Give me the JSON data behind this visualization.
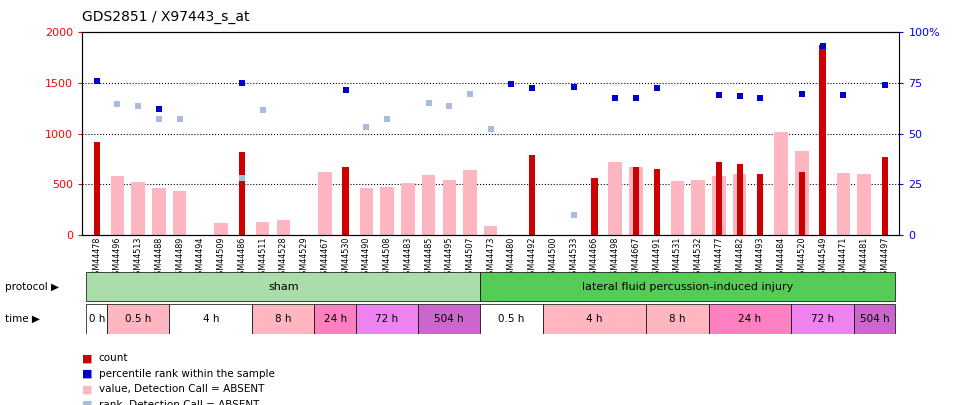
{
  "title": "GDS2851 / X97443_s_at",
  "samples": [
    "GSM44478",
    "GSM44496",
    "GSM44513",
    "GSM44488",
    "GSM44489",
    "GSM44494",
    "GSM44509",
    "GSM44486",
    "GSM44511",
    "GSM44528",
    "GSM44529",
    "GSM44467",
    "GSM44530",
    "GSM44490",
    "GSM44508",
    "GSM44483",
    "GSM44485",
    "GSM44495",
    "GSM44507",
    "GSM44473",
    "GSM44480",
    "GSM44492",
    "GSM44500",
    "GSM44533",
    "GSM44466",
    "GSM44498",
    "GSM44667",
    "GSM44491",
    "GSM44531",
    "GSM44532",
    "GSM44477",
    "GSM44482",
    "GSM44493",
    "GSM44484",
    "GSM44520",
    "GSM44549",
    "GSM44471",
    "GSM44481",
    "GSM44497"
  ],
  "count_data": [
    920,
    0,
    0,
    0,
    0,
    0,
    0,
    820,
    0,
    0,
    0,
    0,
    670,
    0,
    0,
    0,
    0,
    0,
    0,
    0,
    0,
    790,
    0,
    0,
    560,
    0,
    670,
    650,
    0,
    0,
    720,
    700,
    600,
    0,
    620,
    1880,
    0,
    0,
    770
  ],
  "value_absent": [
    null,
    580,
    520,
    460,
    430,
    null,
    120,
    null,
    130,
    150,
    null,
    620,
    null,
    460,
    470,
    510,
    590,
    540,
    640,
    90,
    null,
    null,
    null,
    null,
    null,
    720,
    670,
    null,
    530,
    540,
    580,
    600,
    null,
    1020,
    830,
    null,
    610,
    600,
    null
  ],
  "rank_absent": [
    null,
    1290,
    1270,
    1140,
    1140,
    null,
    null,
    560,
    1230,
    null,
    null,
    null,
    null,
    1070,
    1140,
    null,
    1300,
    1270,
    1390,
    1050,
    null,
    null,
    null,
    200,
    null,
    null,
    null,
    null,
    null,
    null,
    null,
    null,
    null,
    null,
    null,
    null,
    null,
    null,
    null
  ],
  "percentile_data": [
    1520,
    null,
    null,
    1240,
    null,
    null,
    null,
    1500,
    null,
    null,
    null,
    null,
    1430,
    null,
    null,
    null,
    null,
    null,
    null,
    null,
    1490,
    1450,
    null,
    1460,
    null,
    1350,
    1350,
    1450,
    null,
    null,
    1380,
    1370,
    1350,
    null,
    1390,
    1870,
    1380,
    null,
    1480
  ],
  "left_ylim": [
    0,
    2000
  ],
  "left_yticks": [
    0,
    500,
    1000,
    1500,
    2000
  ],
  "right_ylim": [
    0,
    100
  ],
  "right_yticks": [
    0,
    25,
    50,
    75,
    100
  ],
  "right_yticklabels": [
    "0",
    "25",
    "50",
    "75",
    "100%"
  ],
  "color_count": "#CC0000",
  "color_percentile": "#0000CC",
  "color_value_absent": "#FFB6C1",
  "color_rank_absent": "#AABBDD",
  "protocol_groups": [
    {
      "label": "sham",
      "start": 0,
      "end": 18,
      "color": "#AADDAA"
    },
    {
      "label": "lateral fluid percussion-induced injury",
      "start": 19,
      "end": 38,
      "color": "#55CC55"
    }
  ],
  "time_groups": [
    {
      "label": "0 h",
      "start": 0,
      "end": 0,
      "color": "#ffffff"
    },
    {
      "label": "0.5 h",
      "start": 1,
      "end": 3,
      "color": "#FFB6C1"
    },
    {
      "label": "4 h",
      "start": 4,
      "end": 7,
      "color": "#ffffff"
    },
    {
      "label": "8 h",
      "start": 8,
      "end": 10,
      "color": "#FFB6C1"
    },
    {
      "label": "24 h",
      "start": 11,
      "end": 12,
      "color": "#FF80C0"
    },
    {
      "label": "72 h",
      "start": 13,
      "end": 15,
      "color": "#EE82EE"
    },
    {
      "label": "504 h",
      "start": 16,
      "end": 18,
      "color": "#CC66CC"
    },
    {
      "label": "0.5 h",
      "start": 19,
      "end": 21,
      "color": "#ffffff"
    },
    {
      "label": "4 h",
      "start": 22,
      "end": 26,
      "color": "#FFB6C1"
    },
    {
      "label": "8 h",
      "start": 27,
      "end": 29,
      "color": "#FFB6C1"
    },
    {
      "label": "24 h",
      "start": 30,
      "end": 33,
      "color": "#FF80C0"
    },
    {
      "label": "72 h",
      "start": 34,
      "end": 36,
      "color": "#EE82EE"
    },
    {
      "label": "504 h",
      "start": 37,
      "end": 38,
      "color": "#CC66CC"
    }
  ],
  "legend_items": [
    {
      "color": "#CC0000",
      "label": "count",
      "marker": "s"
    },
    {
      "color": "#0000CC",
      "label": "percentile rank within the sample",
      "marker": "s"
    },
    {
      "color": "#FFB6C1",
      "label": "value, Detection Call = ABSENT",
      "marker": "s"
    },
    {
      "color": "#AABBDD",
      "label": "rank, Detection Call = ABSENT",
      "marker": "s"
    }
  ]
}
